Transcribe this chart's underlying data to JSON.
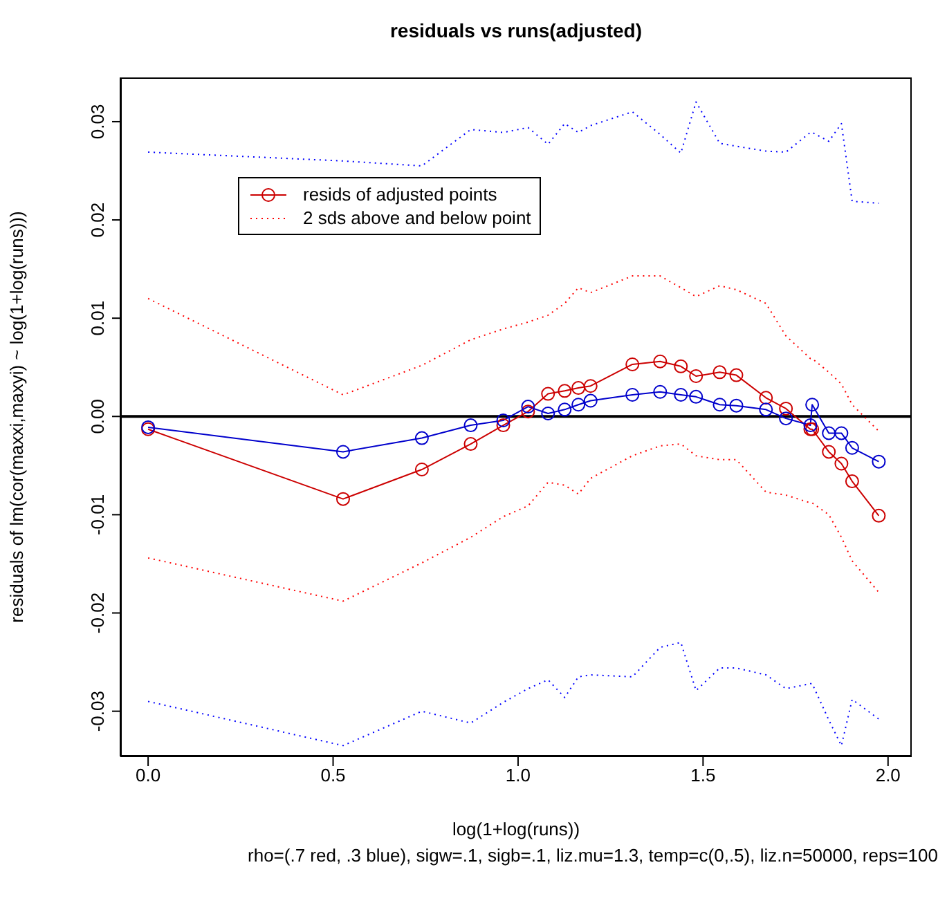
{
  "chart_data": {
    "type": "line",
    "title": "residuals vs runs(adjusted)",
    "xlabel": "log(1+log(runs))",
    "ylabel": "residuals of lm(cor(maxxi,maxyi) ~ log(1+log(runs)))",
    "annotations": [
      "rho=(.7 red, .3 blue), sigw=.1, sigb=.1, liz.mu=1.3, temp=c(0,.5), liz.n=50000, reps=100"
    ],
    "x": [
      0,
      0.527,
      0.74,
      0.872,
      0.96,
      1.027,
      1.081,
      1.126,
      1.163,
      1.196,
      1.309,
      1.384,
      1.44,
      1.481,
      1.545,
      1.59,
      1.67,
      1.724,
      1.79,
      1.795,
      1.84,
      1.874,
      1.903,
      1.975
    ],
    "series": [
      {
        "name": "resids of adjusted points",
        "color": "#cc0000",
        "values": [
          -0.0013,
          -0.0084,
          -0.0054,
          -0.0028,
          -0.0009,
          0.0005,
          0.0023,
          0.0026,
          0.0029,
          0.0031,
          0.0053,
          0.0056,
          0.0051,
          0.0041,
          0.0045,
          0.0042,
          0.0019,
          0.0008,
          -0.0013,
          -0.0013,
          -0.0036,
          -0.0048,
          -0.0066,
          -0.0101
        ]
      },
      {
        "color": "#0000cc",
        "values": [
          -0.0011,
          -0.0036,
          -0.0022,
          -0.0009,
          -0.0004,
          0.001,
          0.0003,
          0.0007,
          0.0012,
          0.0016,
          0.0022,
          0.0025,
          0.0022,
          0.002,
          0.0012,
          0.0011,
          0.0007,
          -0.0002,
          -0.0009,
          0.0012,
          -0.0017,
          -0.0017,
          -0.0032,
          -0.0046
        ]
      },
      {
        "name": "2 sds above and below point",
        "color": "#ff0000",
        "marker": "none",
        "line_style": "dotted",
        "values": [
          0.012,
          0.0022,
          0.0052,
          0.0078,
          0.0089,
          0.0096,
          0.0103,
          0.0115,
          0.0131,
          0.0126,
          0.0143,
          0.0143,
          0.0131,
          0.0122,
          0.0133,
          0.0129,
          0.0115,
          0.0082,
          0.0059,
          0.0059,
          0.0045,
          0.0033,
          0.0012,
          -0.0015
        ]
      },
      {
        "color": "#ff0000",
        "marker": "none",
        "line_style": "dotted",
        "values": [
          -0.0144,
          -0.0188,
          -0.0149,
          -0.0123,
          -0.0102,
          -0.0091,
          -0.0067,
          -0.007,
          -0.0079,
          -0.0063,
          -0.004,
          -0.003,
          -0.0028,
          -0.004,
          -0.0044,
          -0.0044,
          -0.0077,
          -0.008,
          -0.0088,
          -0.0088,
          -0.01,
          -0.0123,
          -0.0147,
          -0.0179
        ]
      },
      {
        "color": "#0000ff",
        "marker": "none",
        "line_style": "dotted",
        "values": [
          0.0269,
          0.026,
          0.0255,
          0.0292,
          0.0289,
          0.0294,
          0.0277,
          0.0298,
          0.0289,
          0.0296,
          0.031,
          0.0287,
          0.0268,
          0.032,
          0.0278,
          0.0275,
          0.027,
          0.0269,
          0.0289,
          0.0289,
          0.028,
          0.0298,
          0.0219,
          0.0217
        ]
      },
      {
        "color": "#0000ff",
        "marker": "none",
        "line_style": "dotted",
        "values": [
          -0.029,
          -0.0335,
          -0.03,
          -0.0312,
          -0.0291,
          -0.0277,
          -0.0268,
          -0.0286,
          -0.0265,
          -0.0263,
          -0.0265,
          -0.0235,
          -0.023,
          -0.0279,
          -0.0256,
          -0.0256,
          -0.0263,
          -0.0277,
          -0.0272,
          -0.0272,
          -0.0309,
          -0.0335,
          -0.0288,
          -0.0308
        ]
      }
    ],
    "marker": "circle",
    "line_style": "solid",
    "xlim": [
      -0.075,
      2.064
    ],
    "xticks": [
      {
        "value": 0,
        "label": "0.0"
      },
      {
        "value": 0.5,
        "label": "0.5"
      },
      {
        "value": 1,
        "label": "1.0"
      },
      {
        "value": 1.5,
        "label": "1.5"
      },
      {
        "value": 2,
        "label": "2.0"
      }
    ],
    "ylim": [
      -0.0346,
      0.0345
    ],
    "yticks": [
      -0.03,
      -0.02,
      -0.01,
      {
        "value": 0,
        "label": "0.00"
      },
      0.01,
      0.02,
      0.03
    ],
    "ref_lines": [
      {
        "axis": "y",
        "value": 0,
        "color": "#000000"
      }
    ],
    "legend": "top left"
  }
}
